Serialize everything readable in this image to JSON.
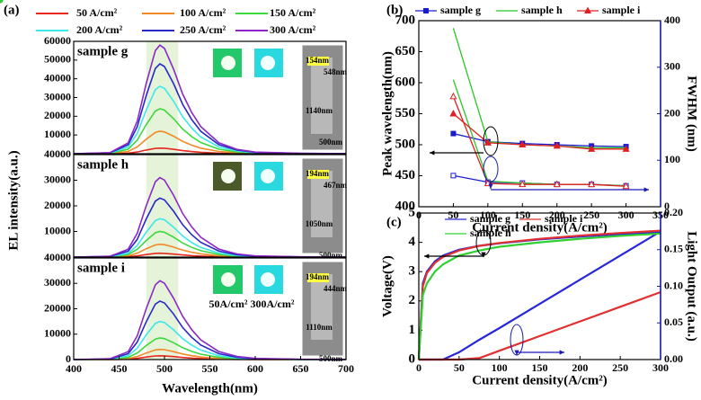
{
  "chart_data": [
    {
      "type": "line",
      "panel_label": "(a)",
      "xlabel": "Wavelength(nm)",
      "ylabel": "EL intensity(a.u.)",
      "x": [
        400,
        440,
        460,
        470,
        480,
        490,
        495,
        500,
        510,
        520,
        530,
        540,
        560,
        580,
        600,
        650,
        700
      ],
      "xlim": [
        400,
        700
      ],
      "xticks": [
        400,
        450,
        500,
        550,
        600,
        650,
        700
      ],
      "highlight": [
        480,
        515
      ],
      "series": [
        {
          "name": "50 A/cm²",
          "color": "#e8281e"
        },
        {
          "name": "100 A/cm²",
          "color": "#f08a28"
        },
        {
          "name": "150 A/cm²",
          "color": "#3cd83c"
        },
        {
          "name": "200 A/cm²",
          "color": "#3ce8e8"
        },
        {
          "name": "250 A/cm²",
          "color": "#2828c8"
        },
        {
          "name": "300 A/cm²",
          "color": "#8c28c8"
        }
      ],
      "panels": [
        {
          "title": "sample g",
          "ylim": [
            0,
            60000
          ],
          "yticks": [
            10000,
            20000,
            30000,
            40000,
            50000,
            60000
          ],
          "values": [
            [
              0,
              30,
              300,
              900,
              1950,
              2850,
              3000,
              2910,
              2340,
              1650,
              1140,
              750,
              300,
              120,
              45,
              9,
              0
            ],
            [
              0,
              120,
              1200,
              3600,
              7800,
              11400,
              12000,
              11640,
              9360,
              6600,
              4560,
              3000,
              1200,
              480,
              180,
              36,
              0
            ],
            [
              0,
              240,
              2400,
              7200,
              15600,
              22800,
              24000,
              23280,
              18720,
              13200,
              9120,
              6000,
              2400,
              960,
              360,
              72,
              0
            ],
            [
              0,
              360,
              3600,
              10800,
              23400,
              34200,
              36000,
              34920,
              28080,
              19800,
              13680,
              9000,
              3600,
              1440,
              540,
              108,
              0
            ],
            [
              0,
              480,
              4800,
              14400,
              31200,
              45600,
              48000,
              46560,
              37440,
              26400,
              18240,
              12000,
              4800,
              1920,
              720,
              144,
              0
            ],
            [
              0,
              580,
              5800,
              17400,
              37700,
              55100,
              58000,
              56260,
              45240,
              31900,
              22040,
              14500,
              5800,
              2320,
              870,
              174,
              0
            ]
          ],
          "annotations": [
            "154nm",
            "548nm",
            "1140nm",
            "500nm"
          ]
        },
        {
          "title": "sample h",
          "ylim": [
            0,
            40000
          ],
          "yticks": [
            10000,
            20000,
            30000,
            40000
          ],
          "values": [
            [
              0,
              15,
              150,
              450,
              975,
              1425,
              1500,
              1455,
              1170,
              825,
              570,
              375,
              150,
              60,
              23,
              5,
              0
            ],
            [
              0,
              50,
              500,
              1500,
              3250,
              4750,
              5000,
              4850,
              3900,
              2750,
              1900,
              1250,
              500,
              200,
              75,
              15,
              0
            ],
            [
              0,
              100,
              1000,
              3000,
              6500,
              9500,
              10000,
              9700,
              7800,
              5500,
              3800,
              2500,
              1000,
              400,
              150,
              30,
              0
            ],
            [
              0,
              150,
              1500,
              4500,
              9750,
              14250,
              15000,
              14550,
              11700,
              8250,
              5700,
              3750,
              1500,
              600,
              225,
              45,
              0
            ],
            [
              0,
              230,
              2300,
              6900,
              14950,
              21850,
              23000,
              22310,
              17940,
              12650,
              8740,
              5750,
              2300,
              920,
              345,
              69,
              0
            ],
            [
              0,
              310,
              3100,
              9300,
              20150,
              29450,
              31000,
              30070,
              24180,
              17050,
              11780,
              7750,
              3100,
              1240,
              465,
              93,
              0
            ]
          ],
          "annotations": [
            "194nm",
            "467nm",
            "1050nm",
            "500nm"
          ]
        },
        {
          "title": "sample i",
          "ylim": [
            0,
            40000
          ],
          "yticks": [
            0,
            10000,
            20000,
            30000,
            40000
          ],
          "values": [
            [
              0,
              15,
              150,
              450,
              975,
              1425,
              1500,
              1455,
              1170,
              825,
              570,
              375,
              150,
              60,
              23,
              5,
              0
            ],
            [
              0,
              40,
              400,
              1200,
              2600,
              3800,
              4000,
              3880,
              3120,
              2200,
              1520,
              1000,
              400,
              160,
              60,
              12,
              0
            ],
            [
              0,
              85,
              850,
              2550,
              5525,
              8075,
              8500,
              8245,
              6630,
              4675,
              3230,
              2125,
              850,
              340,
              128,
              26,
              0
            ],
            [
              0,
              150,
              1500,
              4500,
              9750,
              14250,
              15000,
              14550,
              11700,
              8250,
              5700,
              3750,
              1500,
              600,
              225,
              45,
              0
            ],
            [
              0,
              230,
              2300,
              6900,
              14950,
              21850,
              23000,
              22310,
              17940,
              12650,
              8740,
              5750,
              2300,
              920,
              345,
              69,
              0
            ],
            [
              0,
              310,
              3100,
              9300,
              20150,
              29450,
              31000,
              30070,
              24180,
              17050,
              11780,
              7750,
              3100,
              1240,
              465,
              93,
              0
            ]
          ],
          "annotations": [
            "194nm",
            "444nm",
            "1110nm",
            "500nm",
            "50A/cm²",
            "300A/cm²"
          ]
        }
      ]
    },
    {
      "type": "line",
      "panel_label": "(b)",
      "xlabel": "Current density(A/cm²)",
      "ylabel": "Peak wavelength(nm)",
      "y2label": "FWHM (nm)",
      "x": [
        50,
        100,
        150,
        200,
        250,
        300
      ],
      "xlim": [
        0,
        350
      ],
      "xticks": [
        0,
        50,
        100,
        150,
        200,
        250,
        300,
        350
      ],
      "ylim": [
        400,
        700
      ],
      "yticks": [
        400,
        450,
        500,
        550,
        600,
        650,
        700
      ],
      "y2lim": [
        0,
        400
      ],
      "y2ticks": [
        0,
        100,
        200,
        300,
        400
      ],
      "y2color": "#1a1ab4",
      "series": [
        {
          "name": "sample g",
          "color": "#1a1ad2",
          "marker": "square",
          "values": [
            518,
            505,
            502,
            500,
            498,
            497
          ],
          "values_y2": [
            67,
            53,
            51,
            48,
            48,
            45
          ]
        },
        {
          "name": "sample h",
          "color": "#28c828",
          "marker": "circle",
          "values": [
            688,
            505,
            500,
            498,
            495,
            495
          ],
          "values_y2": [
            273,
            55,
            51,
            48,
            48,
            45
          ]
        },
        {
          "name": "sample i",
          "color": "#e02020",
          "marker": "triangle",
          "values": [
            550,
            503,
            500,
            498,
            493,
            493
          ],
          "values_y2": [
            237,
            50,
            48,
            48,
            48,
            44
          ]
        }
      ]
    },
    {
      "type": "line",
      "panel_label": "(c)",
      "xlabel": "Current density(A/cm²)",
      "ylabel": "Voltage(V)",
      "y2label": "Light Output (a.u.)",
      "x": [
        0,
        5,
        10,
        20,
        30,
        50,
        75,
        100,
        150,
        200,
        250,
        300
      ],
      "xlim": [
        0,
        300
      ],
      "xticks": [
        0,
        50,
        100,
        150,
        200,
        250,
        300
      ],
      "ylim": [
        0,
        5
      ],
      "yticks": [
        0,
        1,
        2,
        3,
        4,
        5
      ],
      "y2lim": [
        0,
        0.2
      ],
      "y2ticks": [
        {
          "value": 0,
          "label": "0.00"
        },
        {
          "value": 0.05,
          "label": "0.05"
        },
        {
          "value": 0.1,
          "label": "0.10"
        },
        {
          "value": 0.15,
          "label": "0.15"
        },
        {
          "value": 0.2,
          "label": "0.20"
        }
      ],
      "y2color": "#1a1ab4",
      "series": [
        {
          "name": "sample g",
          "color": "#2828d8",
          "marker": "dot",
          "values": [
            0,
            2.6,
            3.0,
            3.35,
            3.55,
            3.75,
            3.88,
            3.97,
            4.1,
            4.2,
            4.28,
            4.35
          ],
          "values_y2": [
            0,
            0,
            0,
            0,
            0,
            0.01,
            0.027,
            0.043,
            0.076,
            0.109,
            0.142,
            0.175
          ]
        },
        {
          "name": "sample i",
          "color": "#e03030",
          "marker": "dot",
          "values": [
            0,
            2.5,
            2.95,
            3.3,
            3.5,
            3.72,
            3.88,
            3.98,
            4.12,
            4.23,
            4.32,
            4.4
          ],
          "values_y2": [
            0,
            0,
            0,
            0,
            0,
            0,
            0.002,
            0.012,
            0.032,
            0.052,
            0.072,
            0.092
          ]
        },
        {
          "name": "sample h",
          "color": "#30d030",
          "marker": "dot",
          "values": [
            0,
            2.2,
            2.6,
            3.0,
            3.25,
            3.55,
            3.72,
            3.85,
            4.0,
            4.12,
            4.22,
            4.3
          ]
        }
      ]
    }
  ]
}
